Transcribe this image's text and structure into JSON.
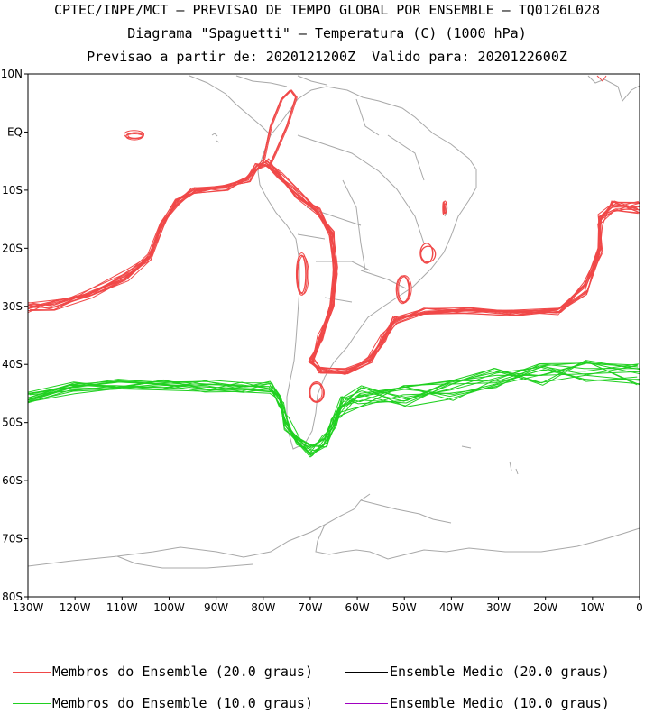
{
  "header": {
    "line1": "CPTEC/INPE/MCT – PREVISAO DE TEMPO GLOBAL POR ENSEMBLE – TQ0126L028",
    "line2": "Diagrama \"Spaguetti\" – Temperatura (C) (1000 hPa)",
    "line3": "Previsao a partir de: 2020121200Z  Valido para: 2020122600Z"
  },
  "axes": {
    "lat_labels": [
      "10N",
      "EQ",
      "10S",
      "20S",
      "30S",
      "40S",
      "50S",
      "60S",
      "70S",
      "80S"
    ],
    "lon_labels": [
      "130W",
      "120W",
      "110W",
      "100W",
      "90W",
      "80W",
      "70W",
      "60W",
      "50W",
      "40W",
      "30W",
      "20W",
      "10W",
      "0"
    ],
    "lon_range": [
      -130,
      0
    ],
    "lat_range": [
      -80,
      10
    ]
  },
  "colors": {
    "member_20": "#f04848",
    "member_10": "#20d020",
    "mean_20": "#000000",
    "mean_10": "#a000c0",
    "coast": "#a8a8a8"
  },
  "legend": {
    "item1": "Membros do Ensemble (20.0 graus)",
    "item2": "Ensemble Medio (20.0 graus)",
    "item3": "Membros do Ensemble (10.0 graus)",
    "item4": "Ensemble Medio (10.0 graus)"
  }
}
